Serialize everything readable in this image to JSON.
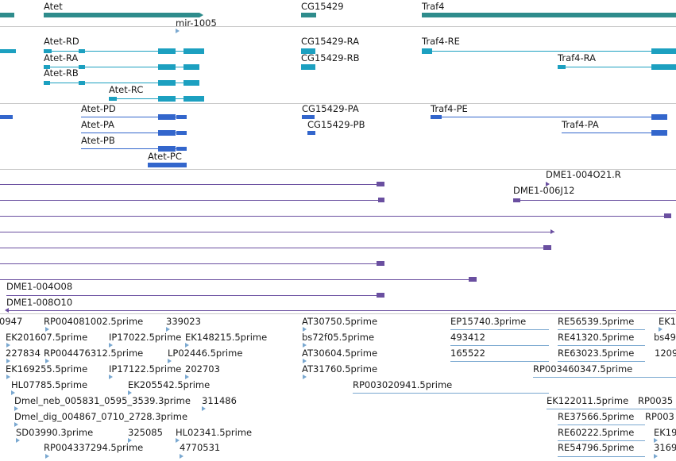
{
  "colors": {
    "gene": "#2e8c8c",
    "mrna": "#1ca0c0",
    "cds": "#3366cc",
    "clone": "#6a4fa0",
    "est": "#7aa8d0",
    "divider": "#c8c8c8"
  },
  "gene_track": {
    "labels": [
      "Atet",
      "mir-1005",
      "CG15429",
      "Traf4"
    ]
  },
  "mrna_track": {
    "labels": [
      "Atet-RD",
      "Atet-RA",
      "Atet-RB",
      "Atet-RC",
      "CG15429-RA",
      "CG15429-RB",
      "Traf4-RE",
      "Traf4-RA"
    ]
  },
  "protein_track": {
    "labels": [
      "Atet-PD",
      "Atet-PA",
      "Atet-PB",
      "Atet-PC",
      "CG15429-PA",
      "CG15429-PB",
      "Traf4-PE",
      "Traf4-PA"
    ]
  },
  "clone_track": {
    "labels": [
      "DME1-004O21.R",
      "DME1-006J12",
      "DME1-004O08",
      "DME1-008O10"
    ]
  },
  "est_track": {
    "labels": [
      "0947",
      "RP004081002.5prime",
      "339023",
      "AT30750.5prime",
      "EP15740.3prime",
      "RE56539.5prime",
      "EK1",
      "EK201607.5prime",
      "IP17022.5prime",
      "EK148215.5prime",
      "bs72f05.5prime",
      "493412",
      "RE41320.5prime",
      "bs49",
      "227834",
      "RP004476312.5prime",
      "LP02446.5prime",
      "AT30604.5prime",
      "165522",
      "RE63023.5prime",
      "1209",
      "EK169255.5prime",
      "IP17122.5prime",
      "202703",
      "AT31760.5prime",
      "RP003460347.5prime",
      "HL07785.5prime",
      "EK205542.5prime",
      "RP003020941.5prime",
      "Dmel_neb_005831_0595_3539.3prime",
      "311486",
      "EK122011.5prime",
      "RP0035",
      "Dmel_dig_004867_0710_2728.3prime",
      "RE37566.5prime",
      "RP003",
      "SD03990.3prime",
      "325085",
      "HL02341.5prime",
      "RE60222.5prime",
      "EK19",
      "RP004337294.5prime",
      "4770531",
      "RE54796.5prime",
      "3169"
    ]
  }
}
